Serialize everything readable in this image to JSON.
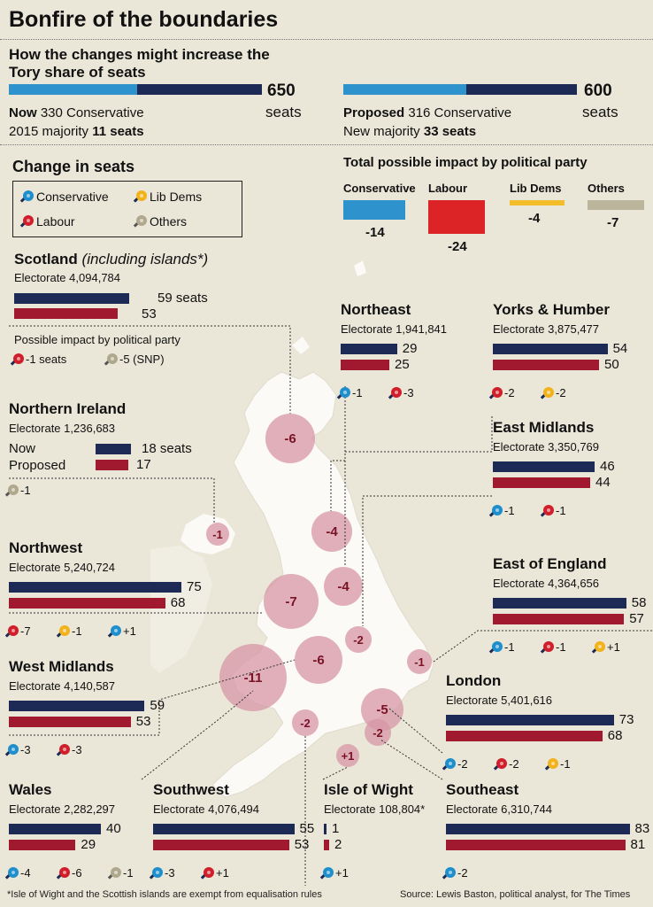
{
  "title": "Bonfire of the boundaries",
  "subtitle": "How the changes might increase the Tory share of seats",
  "now": {
    "total_num": "650",
    "total_unit": "seats",
    "line1_label": "Now",
    "line1_rest": "330 Conservative",
    "line2_label": "2015 majority",
    "line2_bold": "11 seats",
    "conservative_share": 0.508
  },
  "proposed": {
    "total_num": "600",
    "total_unit": "seats",
    "line1_label": "Proposed",
    "line1_rest": "316 Conservative",
    "line2_label": "New majority",
    "line2_bold": "33 seats",
    "conservative_share": 0.527
  },
  "change_heading": "Change in seats",
  "legend": {
    "conservative": "Conservative",
    "lib_dems": "Lib Dems",
    "labour": "Labour",
    "others": "Others"
  },
  "colors": {
    "conservative": "#1e8fcc",
    "labour": "#d01f2a",
    "lib_dems": "#f2b21b",
    "others": "#b0a88c",
    "navy": "#1d2a56",
    "crimson": "#a0192e"
  },
  "party_impact": {
    "heading": "Total possible impact by political party",
    "parties": [
      {
        "name": "Conservative",
        "value": "-14",
        "color": "#2e93cc"
      },
      {
        "name": "Labour",
        "value": "-24",
        "color": "#dc2427"
      },
      {
        "name": "Lib Dems",
        "value": "-4",
        "color": "#f4be2a"
      },
      {
        "name": "Others",
        "value": "-7",
        "color": "#bbb59c"
      }
    ]
  },
  "scotland": {
    "name": "Scotland",
    "name_note": "(including islands*)",
    "electorate_label": "Electorate",
    "electorate": "4,094,784",
    "now": "59",
    "now_unit": "seats",
    "proposed": "53",
    "impact_heading": "Possible impact by political party",
    "impact_labour": "-1 seats",
    "impact_others": "-5 (SNP)"
  },
  "northern_ireland": {
    "name": "Northern Ireland",
    "electorate_label": "Electorate",
    "electorate": "1,236,683",
    "now_label": "Now",
    "proposed_label": "Proposed",
    "now": "18",
    "now_unit": "seats",
    "proposed": "17",
    "impact_others": "-1"
  },
  "regions": {
    "northeast": {
      "name": "Northeast",
      "electorate": "1,941,841",
      "now": "29",
      "proposed": "25",
      "imp_con": "-1",
      "imp_lab": "-3"
    },
    "yorks": {
      "name": "Yorks & Humber",
      "electorate": "3,875,477",
      "now": "54",
      "proposed": "50",
      "imp_lab": "-2",
      "imp_lib": "-2"
    },
    "east_midlands": {
      "name": "East Midlands",
      "electorate": "3,350,769",
      "now": "46",
      "proposed": "44",
      "imp_con": "-1",
      "imp_lab": "-1"
    },
    "northwest": {
      "name": "Northwest",
      "electorate": "5,240,724",
      "now": "75",
      "proposed": "68",
      "imp_lab": "-7",
      "imp_lib": "-1",
      "imp_con": "+1"
    },
    "east_england": {
      "name": "East of England",
      "electorate": "4,364,656",
      "now": "58",
      "proposed": "57",
      "imp_con": "-1",
      "imp_lab": "-1",
      "imp_lib": "+1"
    },
    "west_midlands": {
      "name": "West Midlands",
      "electorate": "4,140,587",
      "now": "59",
      "proposed": "53",
      "imp_con": "-3",
      "imp_lab": "-3"
    },
    "london": {
      "name": "London",
      "electorate": "5,401,616",
      "now": "73",
      "proposed": "68",
      "imp_con": "-2",
      "imp_lab": "-2",
      "imp_lib": "-1"
    },
    "wales": {
      "name": "Wales",
      "electorate": "2,282,297",
      "now": "40",
      "proposed": "29",
      "imp_con": "-4",
      "imp_lab": "-6",
      "imp_oth": "-1"
    },
    "southwest": {
      "name": "Southwest",
      "electorate": "4,076,494",
      "now": "55",
      "proposed": "53",
      "imp_con": "-3",
      "imp_lab": "+1"
    },
    "isle_of_wight": {
      "name": "Isle of Wight",
      "electorate": "108,804*",
      "now": "1",
      "proposed": "2",
      "imp_con": "+1"
    },
    "southeast": {
      "name": "Southeast",
      "electorate": "6,310,744",
      "now": "83",
      "proposed": "81",
      "imp_con": "-2"
    }
  },
  "electorate_label": "Electorate",
  "bubbles": [
    {
      "label": "-6"
    },
    {
      "label": "-1"
    },
    {
      "label": "-4"
    },
    {
      "label": "-4"
    },
    {
      "label": "-7"
    },
    {
      "label": "-2"
    },
    {
      "label": "-6"
    },
    {
      "label": "-11"
    },
    {
      "label": "-1"
    },
    {
      "label": "-2"
    },
    {
      "label": "-5"
    },
    {
      "label": "-2"
    },
    {
      "label": "+1"
    }
  ],
  "chart_data": {
    "type": "bar",
    "categories": [
      "Scotland",
      "Northern Ireland",
      "Northeast",
      "Yorks & Humber",
      "East Midlands",
      "Northwest",
      "East of England",
      "West Midlands",
      "London",
      "Wales",
      "Southwest",
      "Isle of Wight",
      "Southeast"
    ],
    "series": [
      {
        "name": "Now",
        "values": [
          59,
          18,
          29,
          54,
          46,
          75,
          58,
          59,
          73,
          40,
          55,
          1,
          83
        ]
      },
      {
        "name": "Proposed",
        "values": [
          53,
          17,
          25,
          50,
          44,
          68,
          57,
          53,
          68,
          29,
          53,
          2,
          81
        ]
      }
    ],
    "change_in_seats": [
      -6,
      -1,
      -4,
      -4,
      -4,
      -7,
      -1,
      -6,
      -5,
      -11,
      -2,
      1,
      -2
    ],
    "title": "Bonfire of the boundaries"
  },
  "footnote": "*Isle of Wight and the Scottish islands are exempt from equalisation rules",
  "source": "Source: Lewis Baston, political analyst, for The Times"
}
